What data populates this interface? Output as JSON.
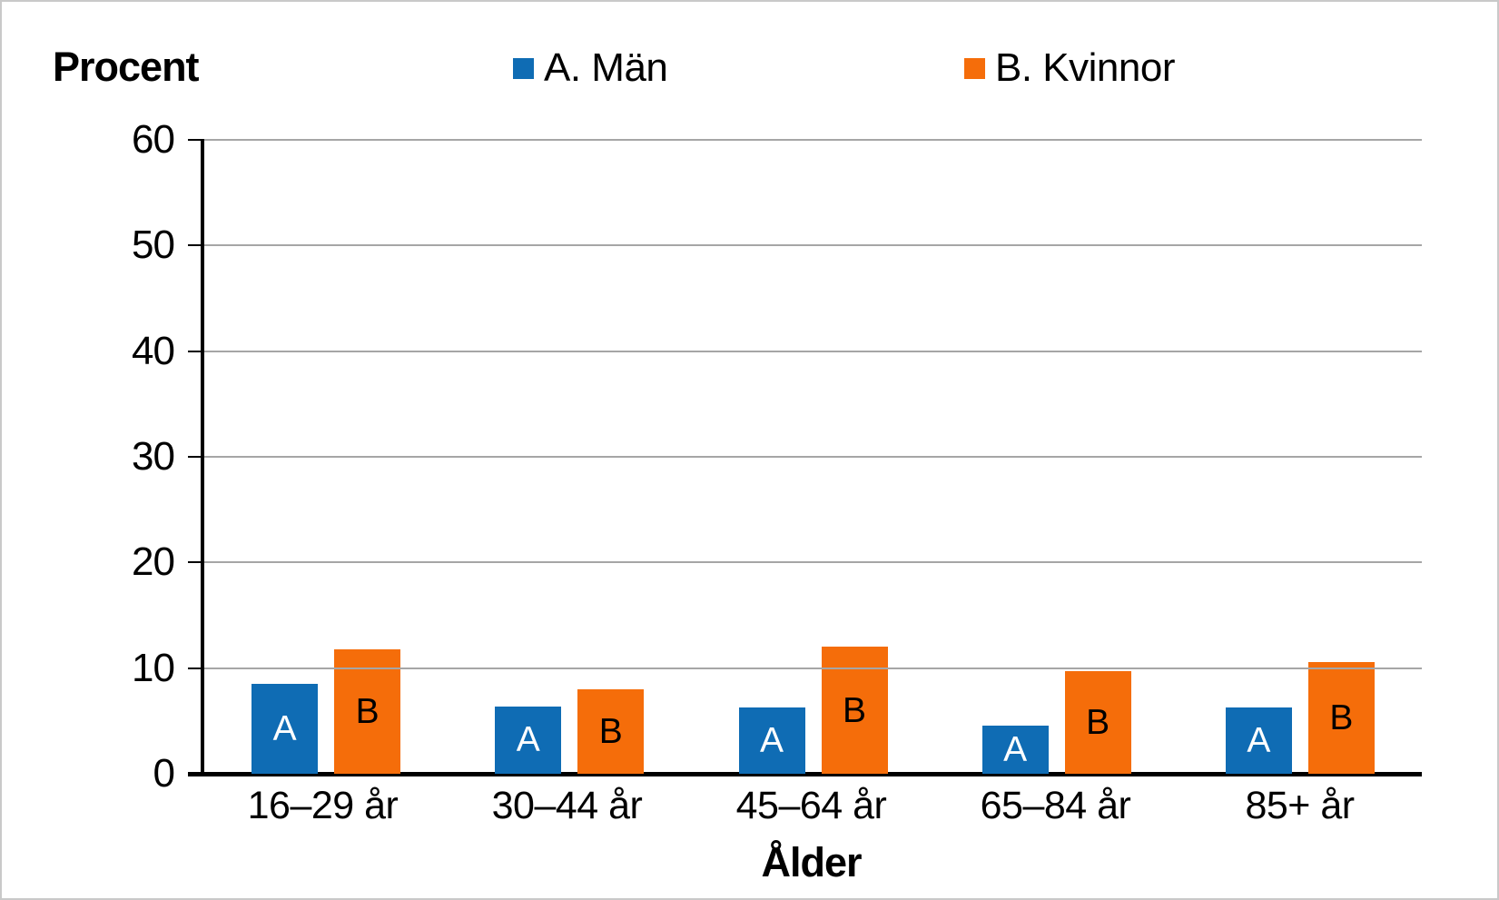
{
  "chart_data": {
    "type": "bar",
    "title": "Procent",
    "xlabel": "Ålder",
    "ylabel": "Procent",
    "ylim": [
      0,
      60
    ],
    "yticks": [
      0,
      10,
      20,
      30,
      40,
      50,
      60
    ],
    "grid": "horizontal",
    "legend_position": "top",
    "categories": [
      "16–29 år",
      "30–44 år",
      "45–64 år",
      "65–84 år",
      "85+ år"
    ],
    "series": [
      {
        "name": "A. Män",
        "bar_label": "A",
        "color": "#0F6CB4",
        "label_color": "#FFFFFF",
        "values": [
          8.5,
          6.4,
          6.3,
          4.6,
          6.3
        ]
      },
      {
        "name": "B. Kvinnor",
        "bar_label": "B",
        "color": "#F56D0A",
        "label_color": "#000000",
        "values": [
          11.8,
          8.0,
          12.0,
          9.7,
          10.6
        ]
      }
    ]
  },
  "colors": {
    "axis": "#000000",
    "gridline": "#A6A6A6",
    "frame_border": "#C9C9C9"
  }
}
